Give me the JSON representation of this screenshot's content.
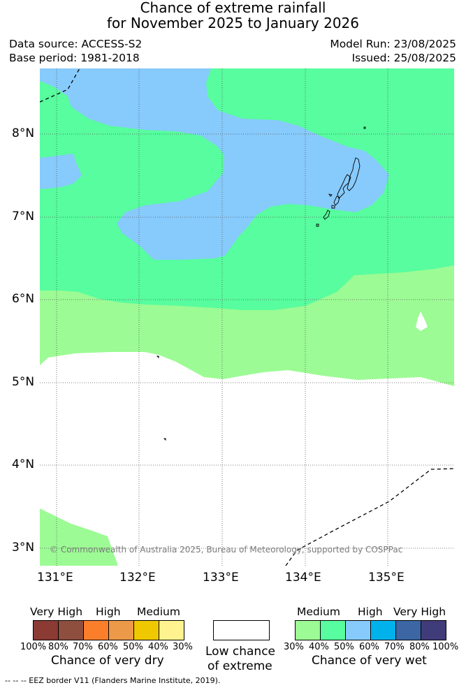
{
  "title_line1": "Chance of extreme rainfall",
  "title_line2": "for November 2025 to January 2026",
  "data_source": "Data source: ACCESS-S2",
  "base_period": "Base period: 1981-2018",
  "model_run": "Model Run: 23/08/2025",
  "issued": "Issued: 25/08/2025",
  "lat_ticks": [
    "8°N",
    "7°N",
    "6°N",
    "5°N",
    "4°N",
    "3°N"
  ],
  "lon_ticks": [
    "131°E",
    "132°E",
    "133°E",
    "134°E",
    "135°E"
  ],
  "copyright": "© Commonwealth of Australia 2025, Bureau of Meteorology, supported by COSPPac",
  "legend_dry": {
    "labels": [
      "Very High",
      "High",
      "Medium"
    ],
    "percents": [
      "100%",
      "80%",
      "70%",
      "60%",
      "50%",
      "40%",
      "30%"
    ],
    "title": "Chance of very dry",
    "colors": [
      "#8b3a34",
      "#8e4f3f",
      "#fb7f2a",
      "#ec9a4a",
      "#f0c800",
      "#fff38f"
    ]
  },
  "legend_low": {
    "title_line1": "Low chance",
    "title_line2": "of extreme",
    "color": "#ffffff"
  },
  "legend_wet": {
    "labels": [
      "Medium",
      "High",
      "Very High"
    ],
    "percents": [
      "30%",
      "40%",
      "50%",
      "60%",
      "70%",
      "80%",
      "100%"
    ],
    "title": "Chance of very wet",
    "colors": [
      "#9cfb94",
      "#57fd9e",
      "#87cafc",
      "#00b2ec",
      "#3c66a4",
      "#403c7a"
    ]
  },
  "footer": "-- -- -- EEZ border V11 (Flanders Marine Institute, 2019).",
  "map_colors": {
    "medium_30_40": "#9cfb94",
    "medium_40_50": "#57fd9e",
    "high_50_60": "#87cafc"
  }
}
